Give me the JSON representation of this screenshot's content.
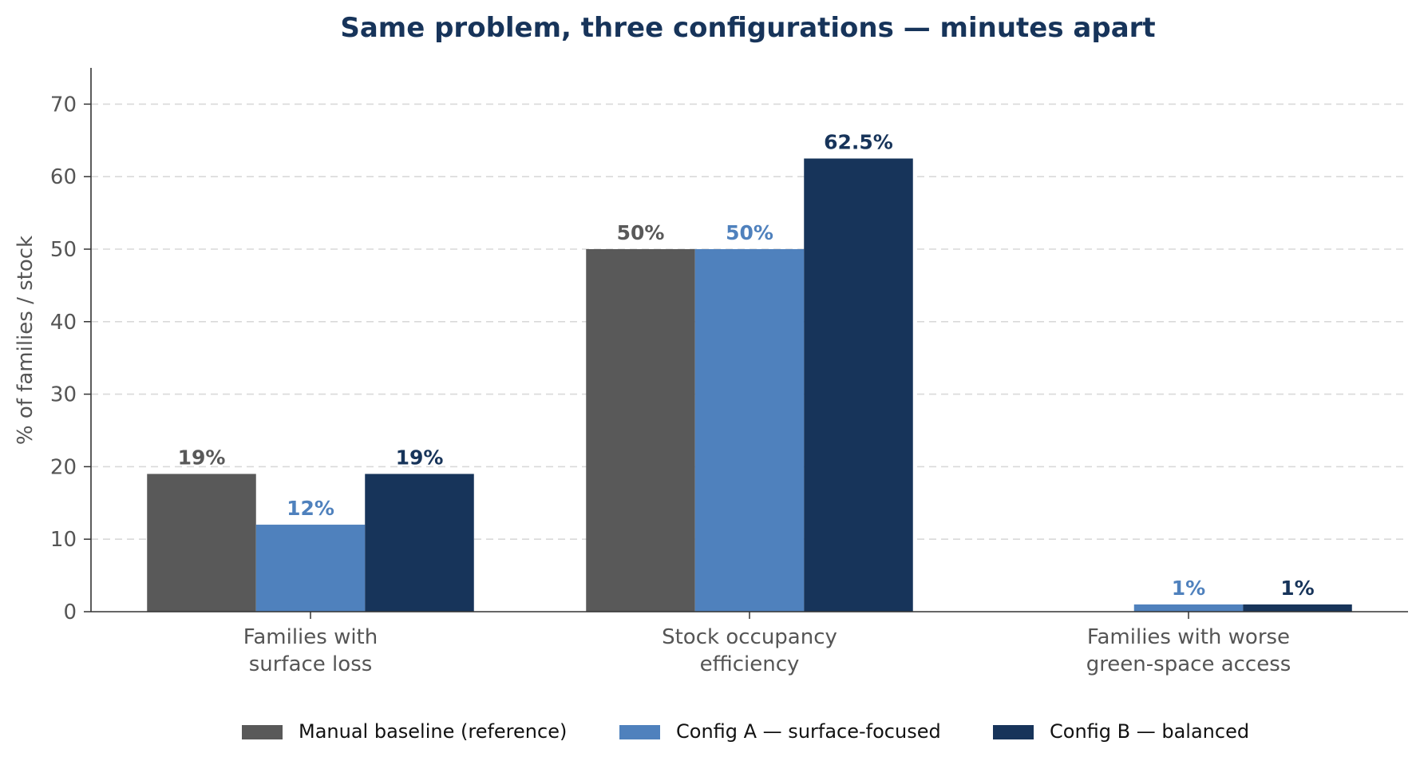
{
  "chart_data": {
    "type": "bar",
    "title": "Same problem, three configurations — minutes apart",
    "xlabel": "",
    "ylabel": "% of families / stock",
    "ylim": [
      0,
      75
    ],
    "yticks": [
      0,
      10,
      20,
      30,
      40,
      50,
      60,
      70
    ],
    "grid": "y-dashed",
    "legend_position": "bottom-center",
    "categories": [
      [
        "Families with",
        "surface loss"
      ],
      [
        "Stock occupancy",
        "efficiency"
      ],
      [
        "Families with worse",
        "green-space access"
      ]
    ],
    "series": [
      {
        "name": "Manual baseline (reference)",
        "color": "#595959",
        "values": [
          19,
          50,
          null
        ],
        "labels": [
          "19%",
          "50%",
          ""
        ]
      },
      {
        "name": "Config A — surface-focused",
        "color": "#4f81bd",
        "values": [
          12,
          50,
          1
        ],
        "labels": [
          "12%",
          "50%",
          "1%"
        ]
      },
      {
        "name": "Config B — balanced",
        "color": "#17345a",
        "values": [
          19,
          62.5,
          1
        ],
        "labels": [
          "19%",
          "62.5%",
          "1%"
        ]
      }
    ]
  }
}
